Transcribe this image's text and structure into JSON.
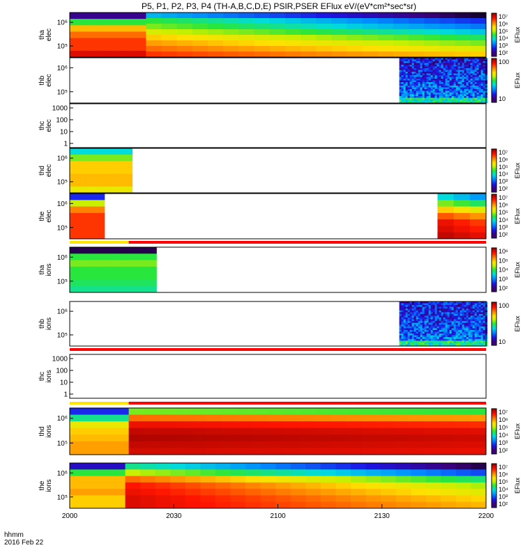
{
  "chart_data": {
    "type": "heatmap",
    "title": "P5, P1, P2, P3, P4 (TH-A,B,C,D,E) PSIR,PSER EFlux eV/(eV*cm²*sec*sr)",
    "x_ticks": [
      "2000",
      "2030",
      "2100",
      "2130",
      "2200"
    ],
    "x_range": [
      "2000",
      "2200"
    ],
    "x_label_line1": "hhmm",
    "x_label_line2": "2016 Feb 22",
    "panels": [
      {
        "probe": "tha",
        "ylabel": [
          "tha",
          "elec"
        ],
        "yticks": [
          "10⁶",
          "10⁵"
        ],
        "cbar_ticks": [
          "10⁷",
          "10⁶",
          "10⁵",
          "10⁴",
          "10³",
          "10²"
        ],
        "cbar_label": "EFlux",
        "segments": [
          {
            "x": [
              2000,
              2022
            ],
            "rows": [
              0.1,
              0.5,
              0.72,
              0.8,
              0.85,
              0.85,
              0.92
            ]
          },
          {
            "x": [
              2022,
              2200
            ],
            "rows": [
              0.35,
              0.5,
              0.55,
              0.62,
              0.7,
              0.75,
              0.8,
              0.85
            ],
            "fade": 0.32
          }
        ],
        "mode_bar": null
      },
      {
        "probe": "thb",
        "ylabel": [
          "thb",
          "elec"
        ],
        "yticks": [
          "10⁶",
          "10⁵"
        ],
        "cbar_ticks": [
          "100",
          "10"
        ],
        "cbar_label": "EFlux",
        "segments": [
          {
            "x": [
              2095,
              2200
            ],
            "noise": true
          }
        ],
        "mode_bar": null
      },
      {
        "probe": "thc",
        "ylabel": [
          "thc",
          "elec"
        ],
        "yticks": [
          "1000",
          "100",
          "10",
          "1"
        ],
        "cbar_ticks": [],
        "cbar_label": "",
        "segments": [],
        "mode_bar": null
      },
      {
        "probe": "thd",
        "ylabel": [
          "thd",
          "elec"
        ],
        "yticks": [
          "10⁶",
          "10⁵"
        ],
        "cbar_ticks": [
          "10⁷",
          "10⁶",
          "10⁵",
          "10⁴",
          "10³",
          "10²"
        ],
        "cbar_label": "EFlux",
        "segments": [
          {
            "x": [
              2000,
              2018
            ],
            "rows": [
              0.4,
              0.55,
              0.7,
              0.7,
              0.72,
              0.72,
              0.65
            ]
          }
        ],
        "mode_bar": null
      },
      {
        "probe": "the",
        "ylabel": [
          "the",
          "elec"
        ],
        "yticks": [
          "10⁶",
          "10⁵"
        ],
        "cbar_ticks": [
          "10⁷",
          "10⁶",
          "10⁵",
          "10⁴",
          "10³",
          "10²"
        ],
        "cbar_label": "EFlux",
        "segments": [
          {
            "x": [
              2000,
              2010
            ],
            "rows": [
              0.2,
              0.6,
              0.78,
              0.85,
              0.85,
              0.85,
              0.85
            ]
          },
          {
            "x": [
              2146,
              2200
            ],
            "rows": [
              0.4,
              0.55,
              0.7,
              0.82,
              0.9,
              0.92,
              0.95
            ],
            "fade": 0.08
          }
        ],
        "mode_bar": {
          "yellow": [
            2000,
            2017
          ],
          "red": [
            2017,
            2200
          ]
        }
      },
      {
        "probe": "tha",
        "ylabel": [
          "tha",
          "ions"
        ],
        "yticks": [
          "10⁶",
          "10⁵"
        ],
        "cbar_ticks": [
          "10⁶",
          "10⁵",
          "10⁴",
          "10³",
          "10²"
        ],
        "cbar_label": "EFlux",
        "segments": [
          {
            "x": [
              2000,
              2025
            ],
            "rows": [
              0.05,
              0.5,
              0.55,
              0.5,
              0.5,
              0.48,
              0.45
            ]
          }
        ],
        "mode_bar": null
      },
      {
        "probe": "thb",
        "ylabel": [
          "thb",
          "ions"
        ],
        "yticks": [
          "10⁶",
          "10⁵"
        ],
        "cbar_ticks": [
          "100",
          "10"
        ],
        "cbar_label": "EFlux",
        "segments": [
          {
            "x": [
              2095,
              2200
            ],
            "noise": true
          }
        ],
        "mode_bar": {
          "yellow": null,
          "red": [
            2000,
            2200
          ]
        }
      },
      {
        "probe": "thc",
        "ylabel": [
          "thc",
          "ions"
        ],
        "yticks": [
          "1000",
          "100",
          "10",
          "1"
        ],
        "cbar_ticks": [],
        "cbar_label": "",
        "segments": [],
        "mode_bar": {
          "yellow": [
            2000,
            2017
          ],
          "red": [
            2017,
            2200
          ]
        }
      },
      {
        "probe": "thd",
        "ylabel": [
          "thd",
          "ions"
        ],
        "yticks": [
          "10⁶",
          "10⁵"
        ],
        "cbar_ticks": [
          "10⁷",
          "10⁶",
          "10⁵",
          "10⁴",
          "10³",
          "10²"
        ],
        "cbar_label": "EFlux",
        "segments": [
          {
            "x": [
              2000,
              2017
            ],
            "rows": [
              0.2,
              0.45,
              0.65,
              0.7,
              0.72,
              0.75,
              0.75
            ]
          },
          {
            "x": [
              2017,
              2200
            ],
            "rows": [
              0.55,
              0.8,
              0.9,
              0.95,
              0.97,
              0.95,
              0.93
            ],
            "fade": 0.05
          }
        ],
        "mode_bar": {
          "yellow": [
            2000,
            2017
          ],
          "red": [
            2017,
            2200
          ]
        }
      },
      {
        "probe": "the",
        "ylabel": [
          "the",
          "ions"
        ],
        "yticks": [
          "10⁶",
          "10⁵"
        ],
        "cbar_ticks": [
          "10⁷",
          "10⁶",
          "10⁵",
          "10⁴",
          "10³",
          "10²"
        ],
        "cbar_label": "EFlux",
        "segments": [
          {
            "x": [
              2000,
              2016
            ],
            "rows": [
              0.15,
              0.5,
              0.72,
              0.72,
              0.75,
              0.7,
              0.7
            ]
          },
          {
            "x": [
              2016,
              2200
            ],
            "rows": [
              0.45,
              0.6,
              0.8,
              0.88,
              0.9,
              0.92,
              0.92
            ],
            "fade": 0.4
          }
        ],
        "mode_bar": null
      }
    ]
  }
}
